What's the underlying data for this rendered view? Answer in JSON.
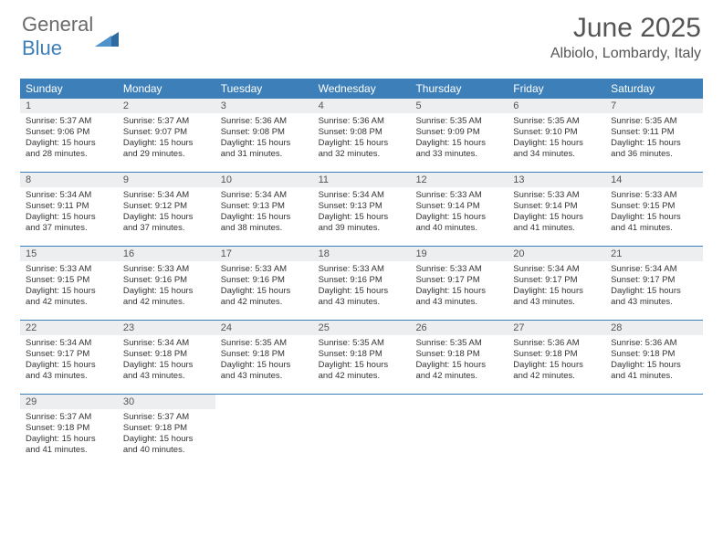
{
  "logo": {
    "part1": "General",
    "part2": "Blue"
  },
  "title": "June 2025",
  "location": "Albiolo, Lombardy, Italy",
  "colors": {
    "header_bg": "#3d7fb8",
    "header_text": "#ffffff",
    "daynum_bg": "#eceef0",
    "text": "#333333",
    "title_text": "#555555",
    "week_border": "#3d7fb8"
  },
  "day_headers": [
    "Sunday",
    "Monday",
    "Tuesday",
    "Wednesday",
    "Thursday",
    "Friday",
    "Saturday"
  ],
  "days": [
    {
      "n": "1",
      "sr": "5:37 AM",
      "ss": "9:06 PM",
      "dl": "15 hours and 28 minutes."
    },
    {
      "n": "2",
      "sr": "5:37 AM",
      "ss": "9:07 PM",
      "dl": "15 hours and 29 minutes."
    },
    {
      "n": "3",
      "sr": "5:36 AM",
      "ss": "9:08 PM",
      "dl": "15 hours and 31 minutes."
    },
    {
      "n": "4",
      "sr": "5:36 AM",
      "ss": "9:08 PM",
      "dl": "15 hours and 32 minutes."
    },
    {
      "n": "5",
      "sr": "5:35 AM",
      "ss": "9:09 PM",
      "dl": "15 hours and 33 minutes."
    },
    {
      "n": "6",
      "sr": "5:35 AM",
      "ss": "9:10 PM",
      "dl": "15 hours and 34 minutes."
    },
    {
      "n": "7",
      "sr": "5:35 AM",
      "ss": "9:11 PM",
      "dl": "15 hours and 36 minutes."
    },
    {
      "n": "8",
      "sr": "5:34 AM",
      "ss": "9:11 PM",
      "dl": "15 hours and 37 minutes."
    },
    {
      "n": "9",
      "sr": "5:34 AM",
      "ss": "9:12 PM",
      "dl": "15 hours and 37 minutes."
    },
    {
      "n": "10",
      "sr": "5:34 AM",
      "ss": "9:13 PM",
      "dl": "15 hours and 38 minutes."
    },
    {
      "n": "11",
      "sr": "5:34 AM",
      "ss": "9:13 PM",
      "dl": "15 hours and 39 minutes."
    },
    {
      "n": "12",
      "sr": "5:33 AM",
      "ss": "9:14 PM",
      "dl": "15 hours and 40 minutes."
    },
    {
      "n": "13",
      "sr": "5:33 AM",
      "ss": "9:14 PM",
      "dl": "15 hours and 41 minutes."
    },
    {
      "n": "14",
      "sr": "5:33 AM",
      "ss": "9:15 PM",
      "dl": "15 hours and 41 minutes."
    },
    {
      "n": "15",
      "sr": "5:33 AM",
      "ss": "9:15 PM",
      "dl": "15 hours and 42 minutes."
    },
    {
      "n": "16",
      "sr": "5:33 AM",
      "ss": "9:16 PM",
      "dl": "15 hours and 42 minutes."
    },
    {
      "n": "17",
      "sr": "5:33 AM",
      "ss": "9:16 PM",
      "dl": "15 hours and 42 minutes."
    },
    {
      "n": "18",
      "sr": "5:33 AM",
      "ss": "9:16 PM",
      "dl": "15 hours and 43 minutes."
    },
    {
      "n": "19",
      "sr": "5:33 AM",
      "ss": "9:17 PM",
      "dl": "15 hours and 43 minutes."
    },
    {
      "n": "20",
      "sr": "5:34 AM",
      "ss": "9:17 PM",
      "dl": "15 hours and 43 minutes."
    },
    {
      "n": "21",
      "sr": "5:34 AM",
      "ss": "9:17 PM",
      "dl": "15 hours and 43 minutes."
    },
    {
      "n": "22",
      "sr": "5:34 AM",
      "ss": "9:17 PM",
      "dl": "15 hours and 43 minutes."
    },
    {
      "n": "23",
      "sr": "5:34 AM",
      "ss": "9:18 PM",
      "dl": "15 hours and 43 minutes."
    },
    {
      "n": "24",
      "sr": "5:35 AM",
      "ss": "9:18 PM",
      "dl": "15 hours and 43 minutes."
    },
    {
      "n": "25",
      "sr": "5:35 AM",
      "ss": "9:18 PM",
      "dl": "15 hours and 42 minutes."
    },
    {
      "n": "26",
      "sr": "5:35 AM",
      "ss": "9:18 PM",
      "dl": "15 hours and 42 minutes."
    },
    {
      "n": "27",
      "sr": "5:36 AM",
      "ss": "9:18 PM",
      "dl": "15 hours and 42 minutes."
    },
    {
      "n": "28",
      "sr": "5:36 AM",
      "ss": "9:18 PM",
      "dl": "15 hours and 41 minutes."
    },
    {
      "n": "29",
      "sr": "5:37 AM",
      "ss": "9:18 PM",
      "dl": "15 hours and 41 minutes."
    },
    {
      "n": "30",
      "sr": "5:37 AM",
      "ss": "9:18 PM",
      "dl": "15 hours and 40 minutes."
    }
  ],
  "labels": {
    "sunrise": "Sunrise:",
    "sunset": "Sunset:",
    "daylight": "Daylight:"
  }
}
